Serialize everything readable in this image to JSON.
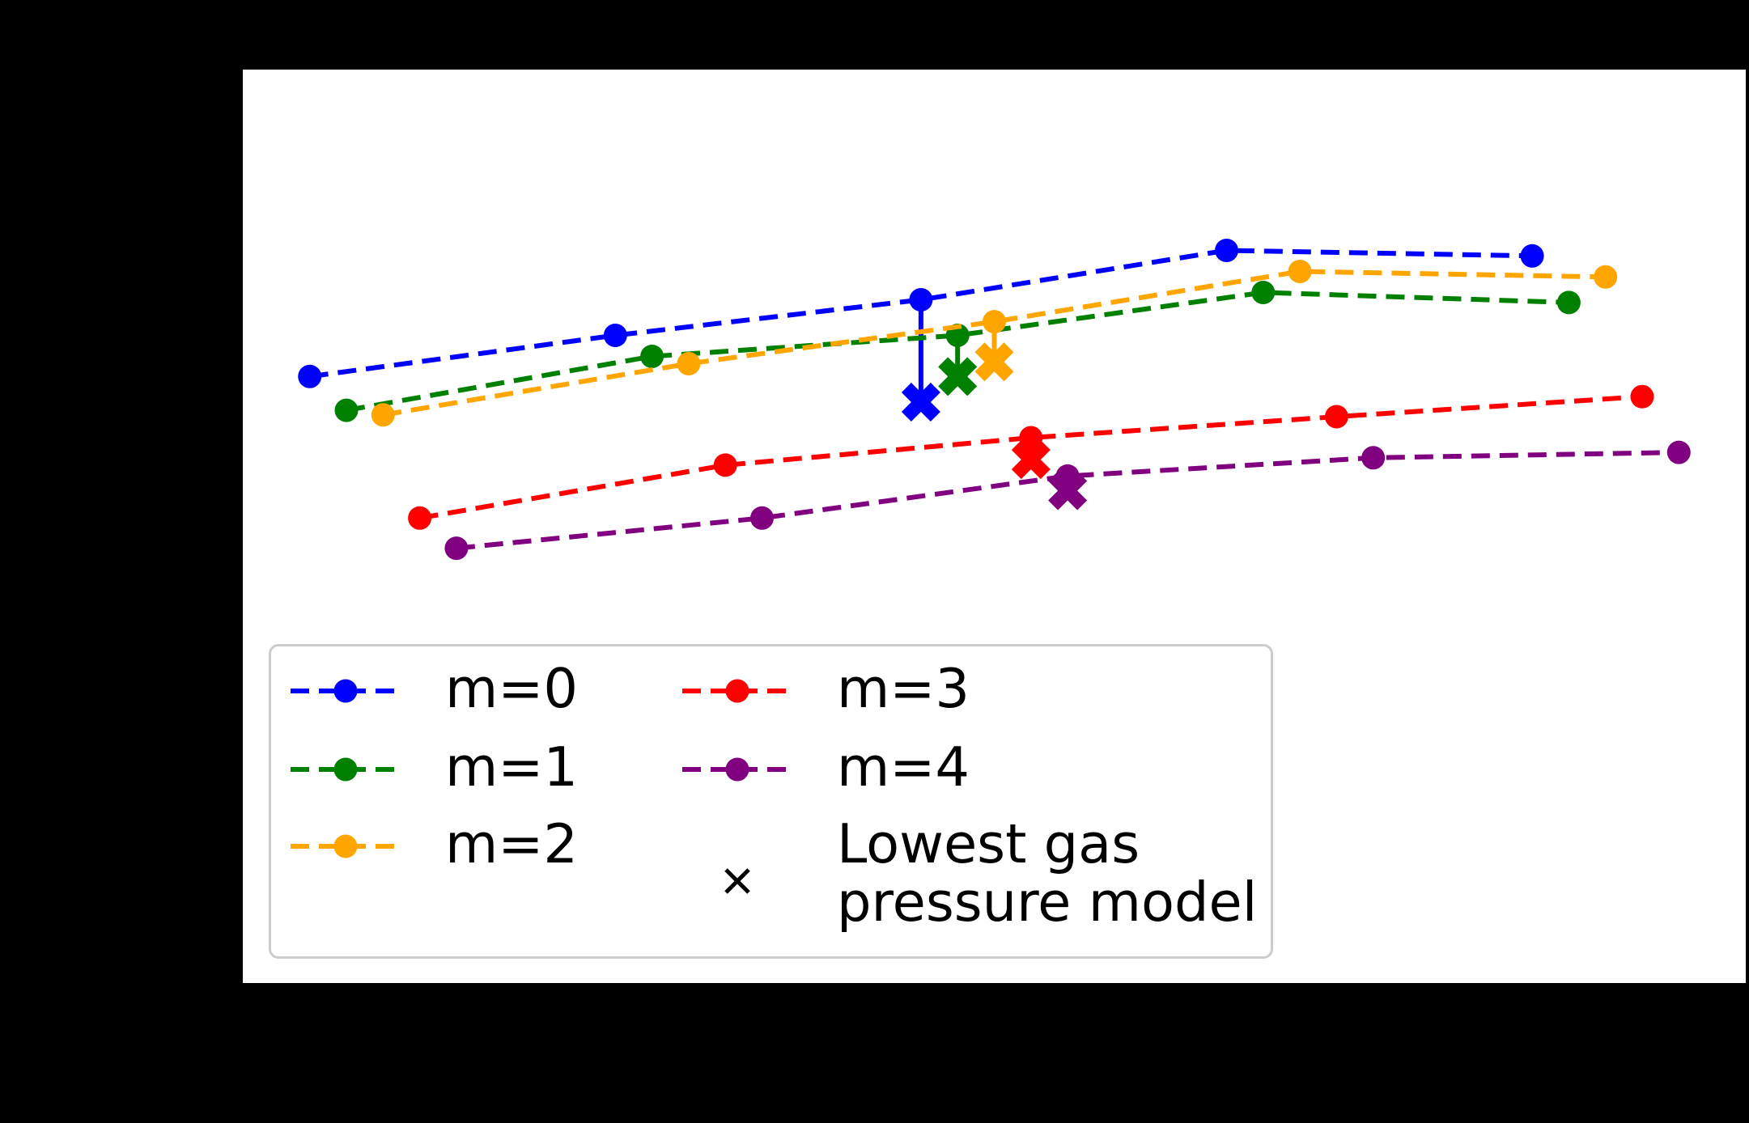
{
  "figure": {
    "background_color": "#000000",
    "axes_background_color": "#ffffff"
  },
  "chart_data": {
    "type": "line",
    "title": "",
    "xlabel": "",
    "ylabel": "",
    "grid": false,
    "x": [
      1,
      2,
      3,
      4,
      5
    ],
    "xlim": [
      0.541,
      5.459
    ],
    "ylim": [
      0,
      1
    ],
    "y_units": "axes-fraction (no axis tick labels are visible in the image)",
    "line_style": "dashed",
    "marker": "circle",
    "series": [
      {
        "name": "m=0",
        "color": "#0000ff",
        "x_offset": -0.24,
        "y": [
          0.664,
          0.709,
          0.748,
          0.802,
          0.796
        ],
        "lowest_gas_pressure_model": {
          "x_index": 2,
          "y": 0.636
        }
      },
      {
        "name": "m=1",
        "color": "#008000",
        "x_offset": -0.12,
        "y": [
          0.627,
          0.686,
          0.709,
          0.756,
          0.745
        ],
        "lowest_gas_pressure_model": {
          "x_index": 2,
          "y": 0.664
        }
      },
      {
        "name": "m=2",
        "color": "#ffa500",
        "x_offset": 0,
        "y": [
          0.622,
          0.678,
          0.724,
          0.779,
          0.773
        ],
        "lowest_gas_pressure_model": {
          "x_index": 2,
          "y": 0.68
        }
      },
      {
        "name": "m=3",
        "color": "#ff0000",
        "x_offset": 0.12,
        "y": [
          0.509,
          0.567,
          0.597,
          0.62,
          0.642
        ],
        "lowest_gas_pressure_model": {
          "x_index": 2,
          "y": 0.573
        }
      },
      {
        "name": "m=4",
        "color": "#800080",
        "x_offset": 0.24,
        "y": [
          0.476,
          0.509,
          0.555,
          0.575,
          0.581
        ],
        "lowest_gas_pressure_model": {
          "x_index": 2,
          "y": 0.539
        }
      }
    ],
    "legend_position": "lower left",
    "legend_columns": 2
  },
  "legend": {
    "items": [
      {
        "label": "m=0",
        "color": "#0000ff",
        "type": "dashed-line-circle"
      },
      {
        "label": "m=1",
        "color": "#008000",
        "type": "dashed-line-circle"
      },
      {
        "label": "m=2",
        "color": "#ffa500",
        "type": "dashed-line-circle"
      },
      {
        "label": "m=3",
        "color": "#ff0000",
        "type": "dashed-line-circle"
      },
      {
        "label": "m=4",
        "color": "#800080",
        "type": "dashed-line-circle"
      },
      {
        "label": "Lowest gas\npressure model",
        "color": "#000000",
        "type": "x-marker"
      }
    ],
    "border_color": "#cccccc",
    "background_color": "#ffffff",
    "text_color": "#000000"
  }
}
